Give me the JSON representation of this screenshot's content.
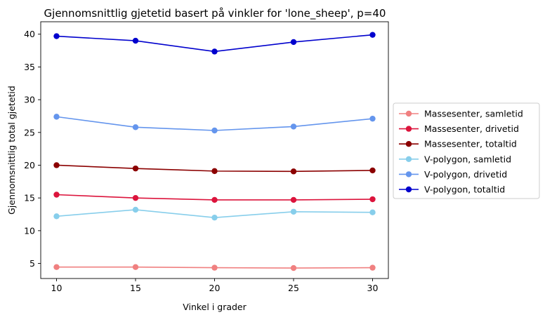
{
  "chart_data": {
    "type": "line",
    "title": "Gjennomsnittlig gjetetid basert på vinkler for 'lone_sheep', p=40",
    "xlabel": "Vinkel i grader",
    "ylabel": "Gjennomsnittlig total gjetetid",
    "x": [
      10,
      15,
      20,
      25,
      30
    ],
    "xticks": [
      "10",
      "15",
      "20",
      "25",
      "30"
    ],
    "yticks": [
      "5",
      "10",
      "15",
      "20",
      "25",
      "30",
      "35",
      "40"
    ],
    "xlim": [
      9,
      31
    ],
    "ylim": [
      2.7,
      41.9
    ],
    "grid": false,
    "legend_position": "center-right, outside plot",
    "series": [
      {
        "name": "Massesenter, samletid",
        "color": "#f08080",
        "values": [
          4.45,
          4.45,
          4.35,
          4.3,
          4.35
        ]
      },
      {
        "name": "Massesenter, drivetid",
        "color": "#dc143c",
        "values": [
          15.5,
          15.0,
          14.7,
          14.7,
          14.8
        ]
      },
      {
        "name": "Massesenter, totaltid",
        "color": "#8b0000",
        "values": [
          20.0,
          19.5,
          19.1,
          19.05,
          19.2
        ]
      },
      {
        "name": "V-polygon, samletid",
        "color": "#87ceeb",
        "values": [
          12.2,
          13.2,
          12.0,
          12.9,
          12.8
        ]
      },
      {
        "name": "V-polygon, drivetid",
        "color": "#6495ed",
        "values": [
          27.4,
          25.8,
          25.3,
          25.9,
          27.1
        ]
      },
      {
        "name": "V-polygon, totaltid",
        "color": "#0000cd",
        "values": [
          39.7,
          39.0,
          37.35,
          38.8,
          39.9
        ]
      }
    ]
  }
}
